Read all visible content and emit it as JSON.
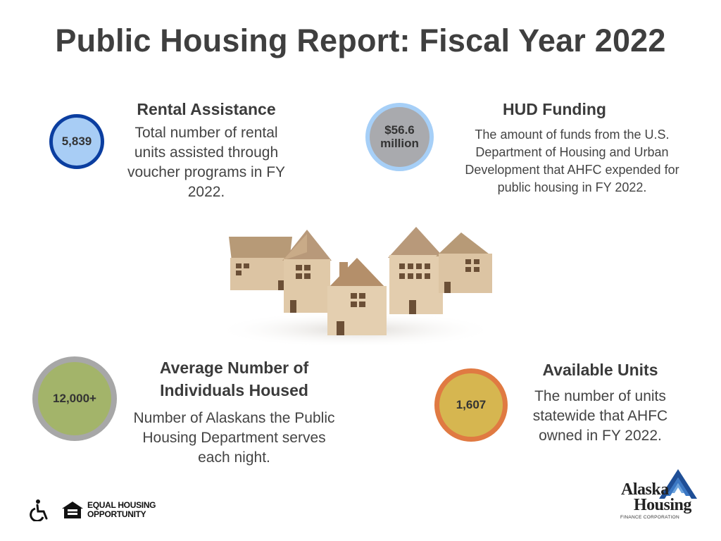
{
  "header": {
    "title": "Public Housing Report: Fiscal Year 2022"
  },
  "stats": {
    "rental": {
      "value": "5,839",
      "heading": "Rental Assistance",
      "description": "Total number of rental units assisted through voucher programs in FY 2022."
    },
    "hud": {
      "value_line1": "$56.6",
      "value_line2": "million",
      "heading": "HUD Funding",
      "description": "The amount of funds from the U.S. Department of Housing and Urban Development that AHFC expended for public housing in FY 2022."
    },
    "individuals": {
      "value": "12,000+",
      "heading": "Average Number of Individuals Housed",
      "description": "Number of Alaskans the Public Housing Department serves each night."
    },
    "units": {
      "value": "1,607",
      "heading": "Available Units",
      "description": "The number of units statewide that AHFC owned in FY 2022."
    }
  },
  "colors": {
    "rental_fill": "#a8cdf5",
    "rental_ring": "#0b3ea0",
    "hud_fill": "#a9aaae",
    "hud_ring": "#a6cff7",
    "individuals_fill": "#a3b46a",
    "individuals_ring": "#a7a7a7",
    "units_fill": "#d6b650",
    "units_ring": "#e07a42"
  },
  "footer": {
    "accessibility_icon": "wheelchair-icon",
    "eho_icon": "equal-housing-house-icon",
    "eho_line1": "EQUAL HOUSING",
    "eho_line2": "OPPORTUNITY",
    "logo_line1": "Alaska",
    "logo_line2": "Housing",
    "logo_line3": "FINANCE CORPORATION"
  }
}
